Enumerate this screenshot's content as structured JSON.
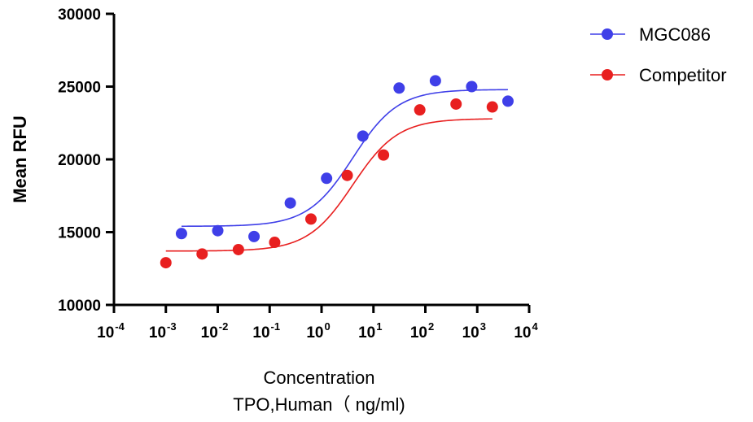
{
  "chart_data": {
    "type": "scatter",
    "title": "",
    "ylabel": "Mean RFU",
    "xlabel_lines": [
      "Concentration",
      "TPO,Human（ ng/ml)"
    ],
    "x_scale": "log10",
    "xlim": [
      0.0001,
      10000
    ],
    "ylim": [
      10000,
      30000
    ],
    "x_tick_exponents": [
      "-4",
      "-3",
      "-2",
      "-1",
      "0",
      "1",
      "2",
      "3",
      "4"
    ],
    "y_ticks": [
      "10000",
      "15000",
      "20000",
      "25000",
      "30000"
    ],
    "legend_position": "top-right",
    "grid": false,
    "series": [
      {
        "name": "MGC086",
        "color": "#3f3fe8",
        "x": [
          0.002,
          0.01,
          0.05,
          0.25,
          1.25,
          6.25,
          31.25,
          156.25,
          781.25,
          3906.25
        ],
        "y": [
          14900,
          15100,
          14700,
          17000,
          18700,
          21600,
          24900,
          25400,
          25000,
          24000
        ],
        "fit": {
          "bottom": 15400,
          "top": 24800,
          "ec50": 4.0,
          "hill": 1.0
        }
      },
      {
        "name": "Competitor",
        "color": "#e81f1f",
        "x": [
          0.001,
          0.005,
          0.025,
          0.125,
          0.625,
          3.125,
          15.625,
          78.125,
          390.625,
          1953.125
        ],
        "y": [
          12900,
          13500,
          13800,
          14300,
          15900,
          18900,
          20300,
          23400,
          23800,
          23600
        ],
        "fit": {
          "bottom": 13700,
          "top": 22800,
          "ec50": 4.0,
          "hill": 1.0
        }
      }
    ]
  }
}
